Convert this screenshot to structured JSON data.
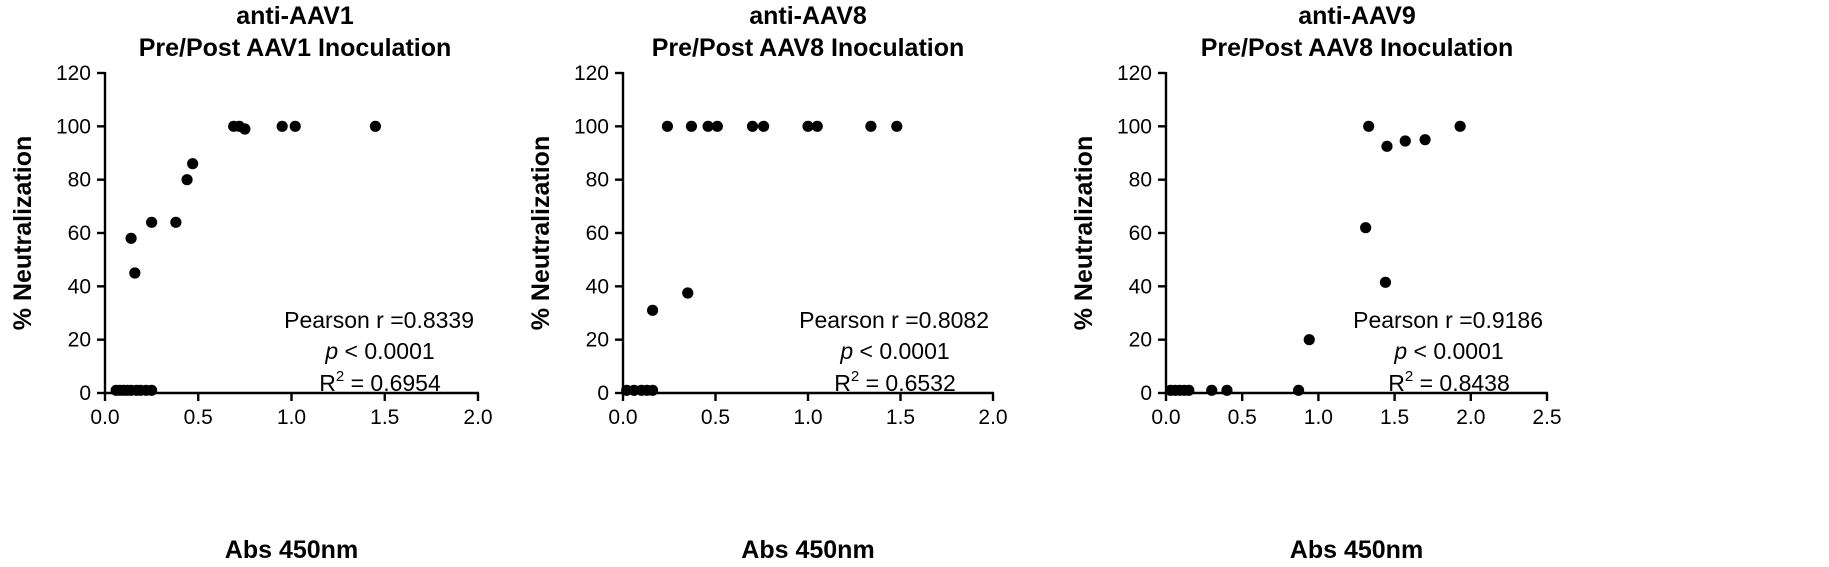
{
  "chart_data": [
    {
      "type": "scatter",
      "title_line1": "anti-AAV1",
      "title_line2": "Pre/Post AAV1 Inoculation",
      "xlabel": "Abs 450nm",
      "ylabel": "% Neutralization",
      "xlim": [
        0,
        2.0
      ],
      "ylim": [
        0,
        120
      ],
      "xticks": [
        0,
        0.5,
        1.0,
        1.5,
        2.0
      ],
      "xtick_labels": [
        "0.0",
        "0.5",
        "1.0",
        "1.5",
        "2.0"
      ],
      "yticks": [
        0,
        20,
        40,
        60,
        80,
        100,
        120
      ],
      "ytick_labels": [
        "0",
        "20",
        "40",
        "60",
        "80",
        "100",
        "120"
      ],
      "grid": false,
      "stats": {
        "pearson": "Pearson r =0.8339",
        "p_italic": "p",
        "p_rest": " < 0.0001",
        "r2_base": "R",
        "r2_sup": "2",
        "r2_rest": " = 0.6954"
      },
      "points": [
        {
          "x": 0.06,
          "y": 1
        },
        {
          "x": 0.08,
          "y": 1
        },
        {
          "x": 0.1,
          "y": 1
        },
        {
          "x": 0.12,
          "y": 1
        },
        {
          "x": 0.14,
          "y": 1
        },
        {
          "x": 0.17,
          "y": 1
        },
        {
          "x": 0.19,
          "y": 1
        },
        {
          "x": 0.22,
          "y": 1
        },
        {
          "x": 0.25,
          "y": 1
        },
        {
          "x": 0.14,
          "y": 58
        },
        {
          "x": 0.16,
          "y": 45
        },
        {
          "x": 0.25,
          "y": 64
        },
        {
          "x": 0.38,
          "y": 64
        },
        {
          "x": 0.44,
          "y": 80
        },
        {
          "x": 0.47,
          "y": 86
        },
        {
          "x": 0.69,
          "y": 100
        },
        {
          "x": 0.72,
          "y": 100
        },
        {
          "x": 0.75,
          "y": 99
        },
        {
          "x": 0.95,
          "y": 100
        },
        {
          "x": 1.02,
          "y": 100
        },
        {
          "x": 1.45,
          "y": 100
        }
      ]
    },
    {
      "type": "scatter",
      "title_line1": "anti-AAV8",
      "title_line2": "Pre/Post AAV8 Inoculation",
      "xlabel": "Abs 450nm",
      "ylabel": "% Neutralization",
      "xlim": [
        0,
        2.0
      ],
      "ylim": [
        0,
        120
      ],
      "xticks": [
        0,
        0.5,
        1.0,
        1.5,
        2.0
      ],
      "xtick_labels": [
        "0.0",
        "0.5",
        "1.0",
        "1.5",
        "2.0"
      ],
      "yticks": [
        0,
        20,
        40,
        60,
        80,
        100,
        120
      ],
      "ytick_labels": [
        "0",
        "20",
        "40",
        "60",
        "80",
        "100",
        "120"
      ],
      "grid": false,
      "stats": {
        "pearson": "Pearson r =0.8082",
        "p_italic": "p",
        "p_rest": " < 0.0001",
        "r2_base": "R",
        "r2_sup": "2",
        "r2_rest": " = 0.6532"
      },
      "points": [
        {
          "x": 0.02,
          "y": 1
        },
        {
          "x": 0.06,
          "y": 1
        },
        {
          "x": 0.1,
          "y": 1
        },
        {
          "x": 0.13,
          "y": 1
        },
        {
          "x": 0.16,
          "y": 1
        },
        {
          "x": 0.16,
          "y": 31
        },
        {
          "x": 0.24,
          "y": 100
        },
        {
          "x": 0.35,
          "y": 37.5
        },
        {
          "x": 0.37,
          "y": 100
        },
        {
          "x": 0.46,
          "y": 100
        },
        {
          "x": 0.51,
          "y": 100
        },
        {
          "x": 0.7,
          "y": 100
        },
        {
          "x": 0.76,
          "y": 100
        },
        {
          "x": 1.0,
          "y": 100
        },
        {
          "x": 1.05,
          "y": 100
        },
        {
          "x": 1.34,
          "y": 100
        },
        {
          "x": 1.48,
          "y": 100
        }
      ]
    },
    {
      "type": "scatter",
      "title_line1": "anti-AAV9",
      "title_line2": "Pre/Post AAV8 Inoculation",
      "xlabel": "Abs 450nm",
      "ylabel": "% Neutralization",
      "xlim": [
        0,
        2.5
      ],
      "ylim": [
        0,
        120
      ],
      "xticks": [
        0,
        0.5,
        1.0,
        1.5,
        2.0,
        2.5
      ],
      "xtick_labels": [
        "0.0",
        "0.5",
        "1.0",
        "1.5",
        "2.0",
        "2.5"
      ],
      "yticks": [
        0,
        20,
        40,
        60,
        80,
        100,
        120
      ],
      "ytick_labels": [
        "0",
        "20",
        "40",
        "60",
        "80",
        "100",
        "120"
      ],
      "grid": false,
      "stats": {
        "pearson": "Pearson r =0.9186",
        "p_italic": "p",
        "p_rest": " < 0.0001",
        "r2_base": "R",
        "r2_sup": "2",
        "r2_rest": " = 0.8438"
      },
      "points": [
        {
          "x": 0.03,
          "y": 1
        },
        {
          "x": 0.06,
          "y": 1
        },
        {
          "x": 0.09,
          "y": 1
        },
        {
          "x": 0.12,
          "y": 1
        },
        {
          "x": 0.15,
          "y": 1
        },
        {
          "x": 0.3,
          "y": 1
        },
        {
          "x": 0.4,
          "y": 1
        },
        {
          "x": 0.87,
          "y": 1
        },
        {
          "x": 0.94,
          "y": 20
        },
        {
          "x": 1.31,
          "y": 62
        },
        {
          "x": 1.33,
          "y": 100
        },
        {
          "x": 1.44,
          "y": 41.5
        },
        {
          "x": 1.45,
          "y": 92.5
        },
        {
          "x": 1.57,
          "y": 94.5
        },
        {
          "x": 1.7,
          "y": 95
        },
        {
          "x": 1.93,
          "y": 100
        }
      ]
    }
  ]
}
